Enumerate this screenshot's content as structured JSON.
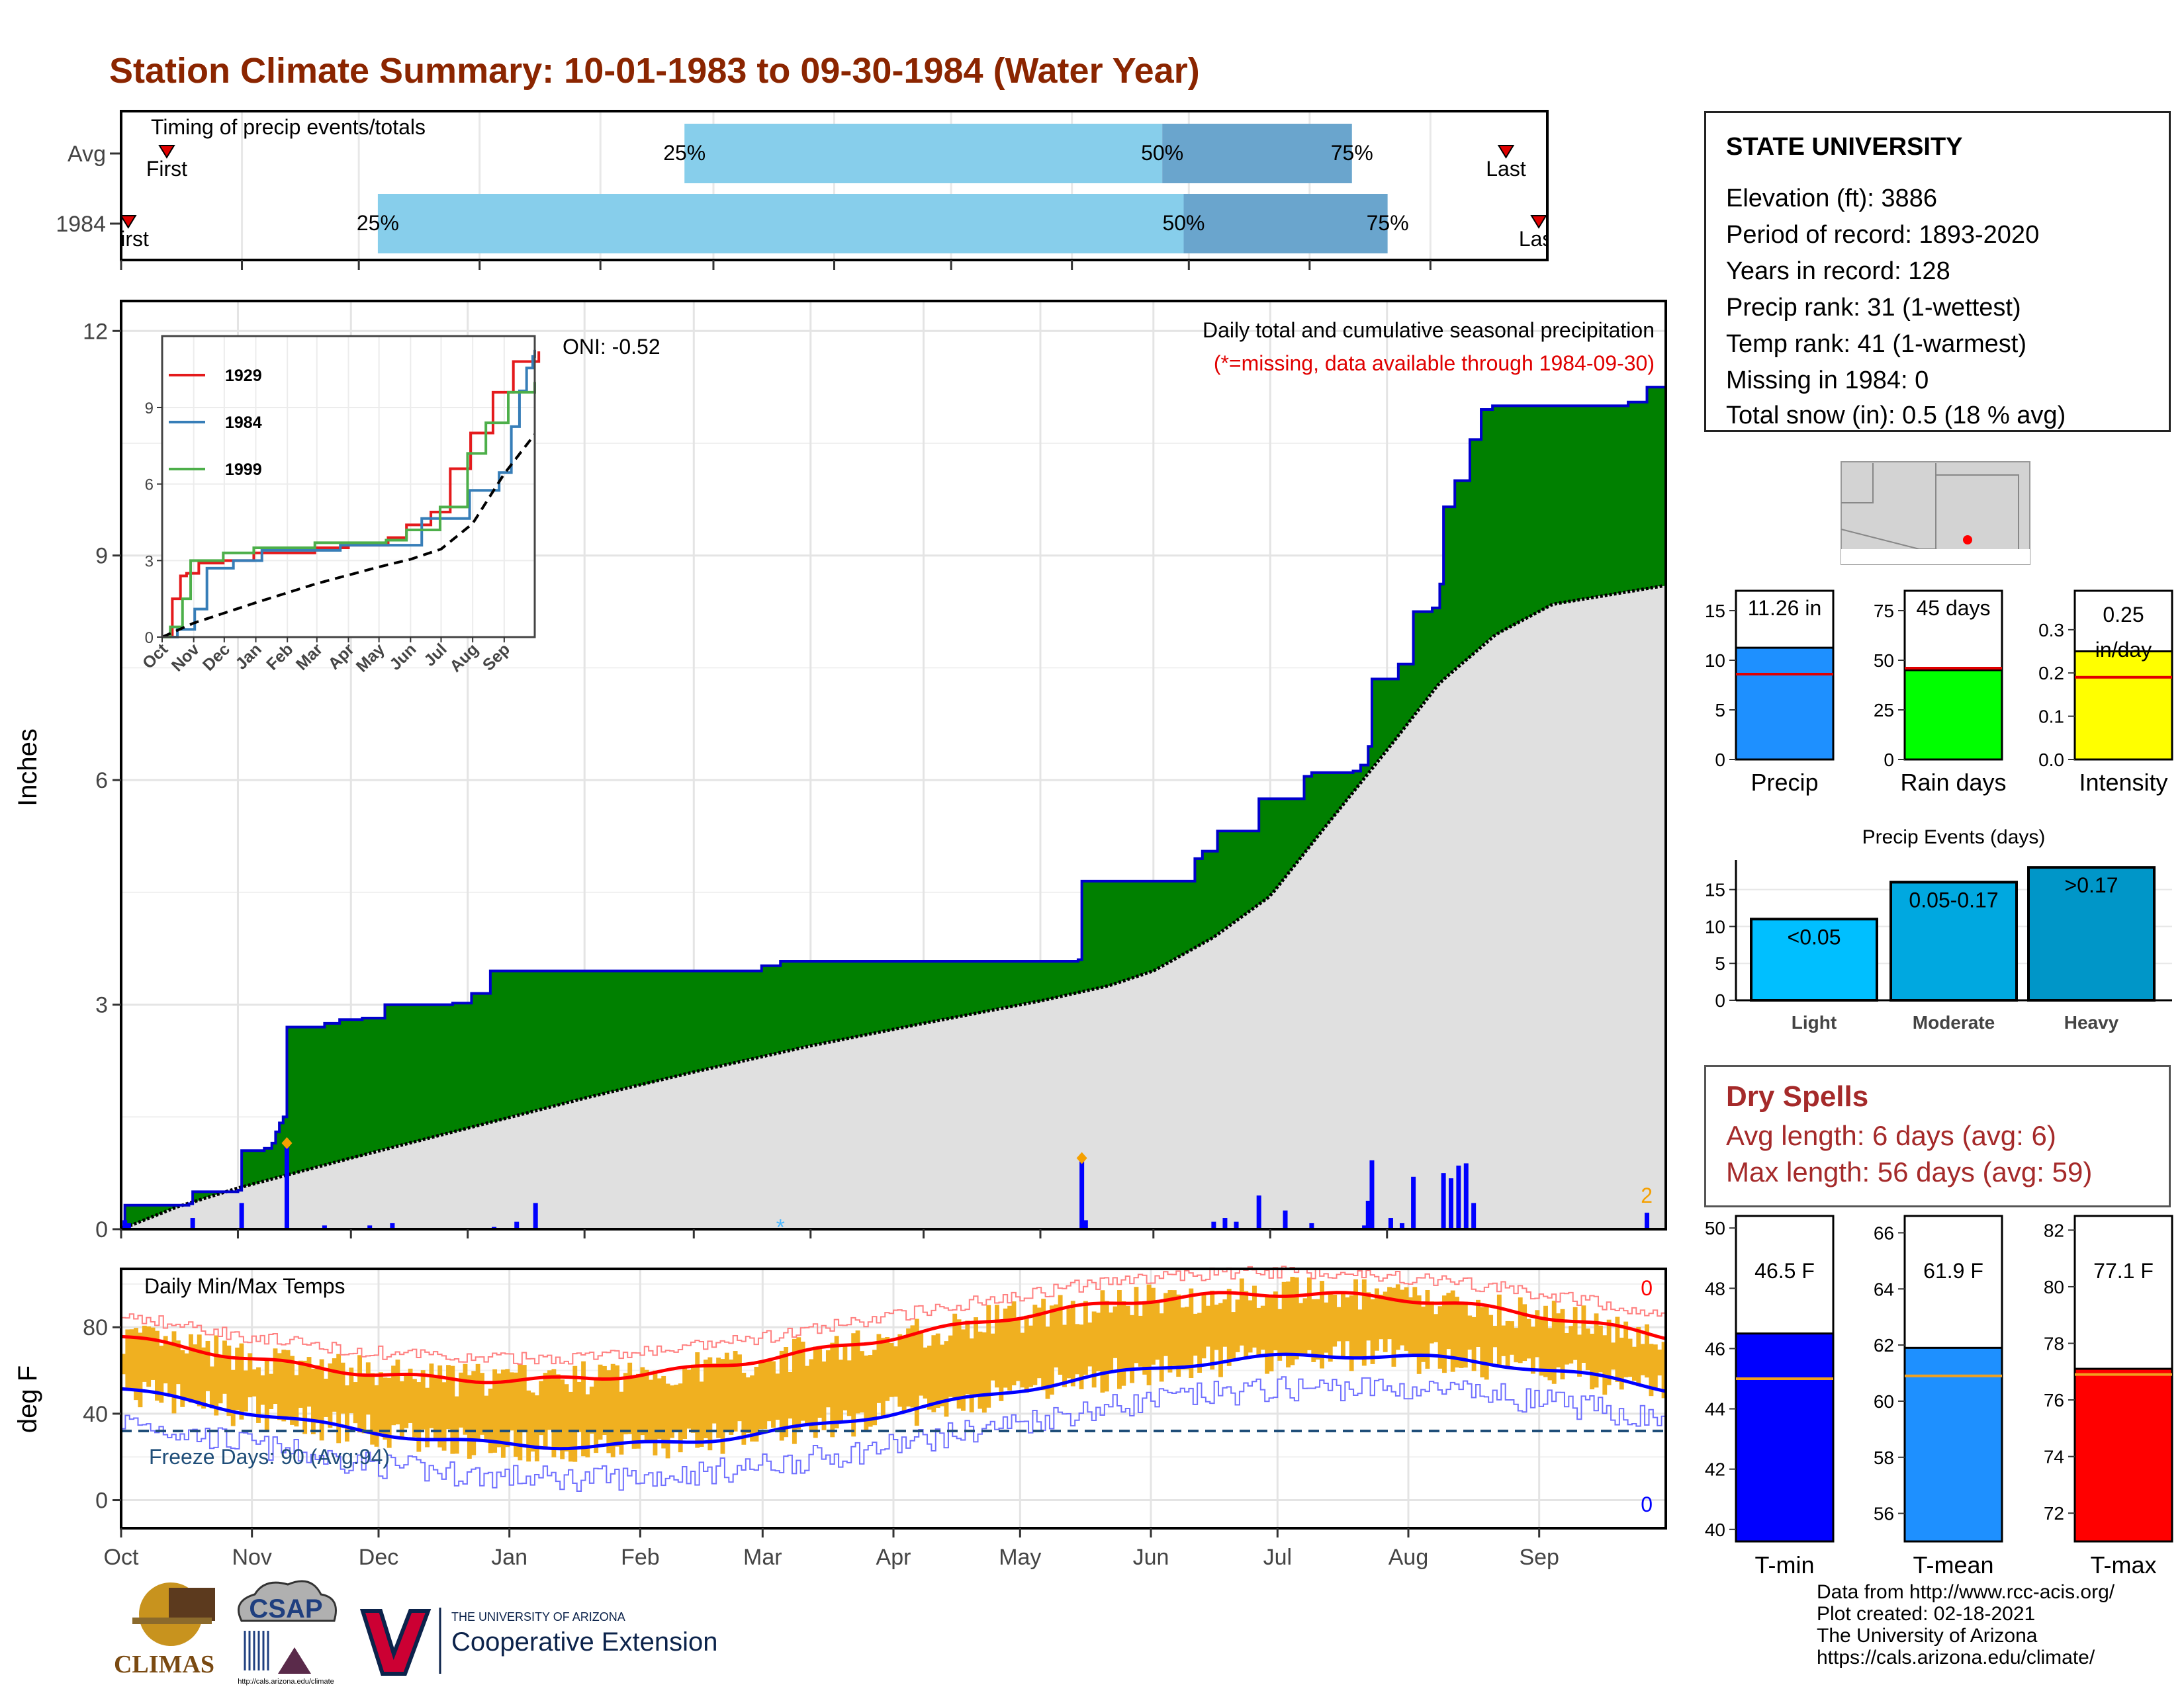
{
  "title": "Station Climate Summary: 10-01-1983 to 09-30-1984 (Water Year)",
  "timing": {
    "panel_label": "Timing of precip events/totals",
    "rows": [
      {
        "name": "Avg",
        "first": 0.032,
        "p25": 0.395,
        "p50": 0.73,
        "p75": 0.863,
        "last": 0.971,
        "first_label": "First",
        "last_label": "Last"
      },
      {
        "name": "1984",
        "first": 0.005,
        "p25": 0.18,
        "p50": 0.745,
        "p75": 0.888,
        "last": 0.994,
        "first_label": "First",
        "last_label": "Last"
      }
    ],
    "pct_labels": [
      "25%",
      "50%",
      "75%"
    ]
  },
  "precip": {
    "ylabel": "Inches",
    "yticks": [
      "0",
      "3",
      "6",
      "9",
      "12"
    ],
    "oni": "ONI: -0.52",
    "note1": "Daily total and cumulative seasonal precipitation",
    "note2": "(*=missing, data available through 1984-09-30)",
    "count_label": "2",
    "month_days": [
      0,
      31,
      61,
      92,
      123,
      152,
      183,
      213,
      244,
      274,
      305,
      336
    ],
    "cumulative_1984": [
      [
        0,
        0.03
      ],
      [
        1,
        0.32
      ],
      [
        18,
        0.34
      ],
      [
        19,
        0.5
      ],
      [
        31,
        0.52
      ],
      [
        32,
        1.05
      ],
      [
        38,
        1.08
      ],
      [
        40,
        1.15
      ],
      [
        41,
        1.3
      ],
      [
        42,
        1.42
      ],
      [
        43,
        1.5
      ],
      [
        44,
        2.7
      ],
      [
        54,
        2.75
      ],
      [
        58,
        2.8
      ],
      [
        64,
        2.82
      ],
      [
        70,
        3.0
      ],
      [
        88,
        3.02
      ],
      [
        93,
        3.15
      ],
      [
        98,
        3.45
      ],
      [
        170,
        3.52
      ],
      [
        175,
        3.58
      ],
      [
        254,
        3.6
      ],
      [
        255,
        4.65
      ],
      [
        274,
        4.65
      ],
      [
        285,
        4.95
      ],
      [
        287,
        5.05
      ],
      [
        291,
        5.32
      ],
      [
        302,
        5.75
      ],
      [
        314,
        6.05
      ],
      [
        316,
        6.1
      ],
      [
        327,
        6.12
      ],
      [
        329,
        6.2
      ],
      [
        331,
        6.45
      ],
      [
        332,
        7.35
      ],
      [
        339,
        7.55
      ],
      [
        343,
        8.25
      ],
      [
        348,
        8.3
      ],
      [
        350,
        8.62
      ],
      [
        351,
        9.65
      ],
      [
        354,
        10.0
      ],
      [
        358,
        10.55
      ],
      [
        361,
        10.95
      ],
      [
        364,
        11.0
      ],
      [
        395,
        11.0
      ],
      [
        400,
        11.05
      ],
      [
        402,
        11.05
      ],
      [
        404,
        11.05
      ],
      [
        405,
        11.25
      ],
      [
        410,
        11.26
      ]
    ],
    "avg_cumulative": [
      [
        0,
        0
      ],
      [
        15,
        0.3
      ],
      [
        31,
        0.55
      ],
      [
        61,
        0.95
      ],
      [
        92,
        1.35
      ],
      [
        123,
        1.75
      ],
      [
        152,
        2.1
      ],
      [
        183,
        2.45
      ],
      [
        213,
        2.75
      ],
      [
        244,
        3.05
      ],
      [
        262,
        3.25
      ],
      [
        274,
        3.45
      ],
      [
        290,
        3.9
      ],
      [
        305,
        4.45
      ],
      [
        320,
        5.4
      ],
      [
        336,
        6.4
      ],
      [
        350,
        7.3
      ],
      [
        365,
        7.95
      ],
      [
        380,
        8.35
      ],
      [
        410,
        8.6
      ]
    ],
    "daily_bars": [
      [
        1,
        0.12
      ],
      [
        2,
        0.08
      ],
      [
        19,
        0.15
      ],
      [
        32,
        0.35
      ],
      [
        44,
        1.2
      ],
      [
        54,
        0.05
      ],
      [
        66,
        0.05
      ],
      [
        72,
        0.08
      ],
      [
        99,
        0.03
      ],
      [
        105,
        0.1
      ],
      [
        110,
        0.35
      ],
      [
        255,
        0.95
      ],
      [
        256,
        0.12
      ],
      [
        290,
        0.1
      ],
      [
        293,
        0.15
      ],
      [
        296,
        0.1
      ],
      [
        302,
        0.45
      ],
      [
        309,
        0.25
      ],
      [
        316,
        0.08
      ],
      [
        330,
        0.05
      ],
      [
        331,
        0.38
      ],
      [
        332,
        0.92
      ],
      [
        337,
        0.15
      ],
      [
        340,
        0.08
      ],
      [
        343,
        0.7
      ],
      [
        351,
        0.75
      ],
      [
        353,
        0.68
      ],
      [
        355,
        0.85
      ],
      [
        357,
        0.88
      ],
      [
        359,
        0.35
      ],
      [
        405,
        0.22
      ]
    ],
    "flags": [
      [
        44,
        1.15
      ],
      [
        255,
        0.95
      ]
    ],
    "missing_marks": [
      [
        175,
        0.05
      ]
    ]
  },
  "inset": {
    "yticks": [
      "0",
      "3",
      "6",
      "9"
    ],
    "xticks": [
      "Oct",
      "Nov",
      "Dec",
      "Jan",
      "Feb",
      "Mar",
      "Apr",
      "May",
      "Jun",
      "Jul",
      "Aug",
      "Sep"
    ],
    "series": [
      {
        "name": "1929",
        "color": "#e41a1c",
        "points": [
          [
            0,
            0
          ],
          [
            10,
            1.5
          ],
          [
            18,
            2.4
          ],
          [
            24,
            2.5
          ],
          [
            36,
            2.9
          ],
          [
            60,
            3.0
          ],
          [
            90,
            3.3
          ],
          [
            150,
            3.5
          ],
          [
            183,
            3.6
          ],
          [
            222,
            3.9
          ],
          [
            240,
            4.4
          ],
          [
            264,
            4.9
          ],
          [
            283,
            6.6
          ],
          [
            303,
            8.0
          ],
          [
            325,
            9.6
          ],
          [
            345,
            10.8
          ],
          [
            370,
            11.2
          ]
        ]
      },
      {
        "name": "1984",
        "color": "#377eb8",
        "points": [
          [
            0,
            0
          ],
          [
            15,
            0.3
          ],
          [
            32,
            1.1
          ],
          [
            44,
            2.7
          ],
          [
            70,
            3.0
          ],
          [
            98,
            3.4
          ],
          [
            175,
            3.6
          ],
          [
            255,
            4.65
          ],
          [
            302,
            5.75
          ],
          [
            331,
            6.45
          ],
          [
            343,
            8.25
          ],
          [
            351,
            9.65
          ],
          [
            358,
            10.55
          ],
          [
            364,
            11.0
          ],
          [
            366,
            11.26
          ]
        ]
      },
      {
        "name": "1999",
        "color": "#4daf4a",
        "points": [
          [
            0,
            0
          ],
          [
            8,
            0.4
          ],
          [
            20,
            1.5
          ],
          [
            28,
            3.0
          ],
          [
            60,
            3.3
          ],
          [
            90,
            3.5
          ],
          [
            150,
            3.7
          ],
          [
            220,
            3.8
          ],
          [
            240,
            4.2
          ],
          [
            273,
            5.1
          ],
          [
            300,
            7.2
          ],
          [
            318,
            8.4
          ],
          [
            340,
            9.6
          ],
          [
            366,
            10.0
          ]
        ]
      }
    ],
    "avg_points": [
      [
        0,
        0
      ],
      [
        31,
        0.55
      ],
      [
        92,
        1.35
      ],
      [
        152,
        2.1
      ],
      [
        213,
        2.75
      ],
      [
        244,
        3.05
      ],
      [
        274,
        3.45
      ],
      [
        305,
        4.45
      ],
      [
        336,
        6.4
      ],
      [
        366,
        7.95
      ]
    ]
  },
  "temps": {
    "ylabel": "deg F",
    "yticks": [
      "0",
      "40",
      "80"
    ],
    "panel_label": "Daily Min/Max Temps",
    "freeze_label": "Freeze Days: 90 (Avg:94)",
    "count_top": "0",
    "count_bottom": "0",
    "months": [
      "Oct",
      "Nov",
      "Dec",
      "Jan",
      "Feb",
      "Mar",
      "Apr",
      "May",
      "Jun",
      "Jul",
      "Aug",
      "Sep"
    ]
  },
  "info": {
    "station": "STATE UNIVERSITY",
    "lines": [
      "Elevation (ft): 3886",
      "Period of record: 1893-2020",
      "Years in record: 128",
      "Precip rank: 31 (1-wettest)",
      "Temp rank: 41 (1-warmest)",
      "Missing in 1984: 0",
      "Total snow (in): 0.5 (18 % avg)"
    ]
  },
  "mini_bars": [
    {
      "label": "Precip",
      "value_label": "11.26 in",
      "value": 11.26,
      "avg": 8.6,
      "ymax": 17,
      "ticks": [
        0,
        5,
        10,
        15
      ],
      "color": "#1e90ff"
    },
    {
      "label": "Rain days",
      "value_label": "45 days",
      "value": 45,
      "avg": 46,
      "ymax": 85,
      "ticks": [
        0,
        25,
        50,
        75
      ],
      "color": "#00ff00"
    },
    {
      "label": "Intensity",
      "value_label": "0.25 in/day",
      "value": 0.25,
      "avg": 0.19,
      "ymax": 0.39,
      "ticks": [
        0.0,
        0.1,
        0.2,
        0.3
      ],
      "color": "#ffff00"
    }
  ],
  "events": {
    "title": "Precip Events (days)",
    "ymax": 19,
    "ticks": [
      0,
      5,
      10,
      15
    ],
    "bars": [
      {
        "category": "Light",
        "value": 11,
        "label": "<0.05",
        "color": "#00bfff"
      },
      {
        "category": "Moderate",
        "value": 16,
        "label": "0.05-0.17",
        "color": "#00a8e0"
      },
      {
        "category": "Heavy",
        "value": 18,
        "label": ">0.17",
        "color": "#0096c8"
      }
    ]
  },
  "dry": {
    "title": "Dry Spells",
    "avg_line": "Avg length: 6 days (avg: 6)",
    "max_line": "Max length: 56 days (avg: 59)"
  },
  "temp_bars": [
    {
      "label": "T-min",
      "value_label": "46.5 F",
      "value": 46.5,
      "avg": 45.0,
      "ymin": 39.6,
      "ymax": 50.4,
      "ticks": [
        40,
        42,
        44,
        46,
        48,
        50
      ],
      "color": "#0000ff"
    },
    {
      "label": "T-mean",
      "value_label": "61.9 F",
      "value": 61.9,
      "avg": 60.9,
      "ymin": 55.0,
      "ymax": 66.6,
      "ticks": [
        56,
        58,
        60,
        62,
        64,
        66
      ],
      "color": "#1e90ff"
    },
    {
      "label": "T-max",
      "value_label": "77.1 F",
      "value": 77.1,
      "avg": 76.9,
      "ymin": 71.0,
      "ymax": 82.5,
      "ticks": [
        72,
        74,
        76,
        78,
        80,
        82
      ],
      "color": "#ff0000"
    }
  ],
  "credits": [
    "Data from http://www.rcc-acis.org/",
    "Plot created: 02-18-2021",
    "The University of Arizona",
    "https://cals.arizona.edu/climate/"
  ],
  "logos": {
    "climas": "CLIMAS",
    "csap": "CSAP",
    "csap_url": "http://cals.arizona.edu/climate",
    "ua_small": "THE UNIVERSITY OF ARIZONA",
    "ua_big": "Cooperative Extension"
  },
  "colors": {
    "title": "#8b2500",
    "cum_fill": "#008000",
    "cum_line": "#0000cd",
    "avg_fill": "#e0e0e0",
    "temp_bar": "#f0b020",
    "tmax_avg": "#ff0000",
    "tmin_avg": "#0000ff"
  }
}
